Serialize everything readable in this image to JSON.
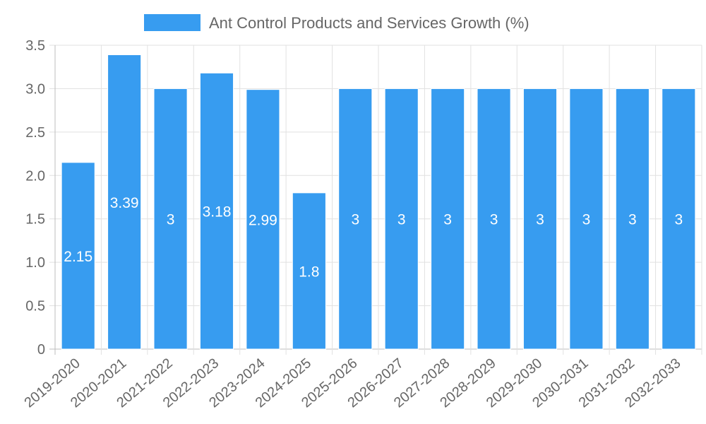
{
  "chart_data": {
    "type": "bar",
    "categories": [
      "2019-2020",
      "2020-2021",
      "2021-2022",
      "2022-2023",
      "2023-2024",
      "2024-2025",
      "2025-2026",
      "2026-2027",
      "2027-2028",
      "2028-2029",
      "2029-2030",
      "2030-2031",
      "2031-2032",
      "2032-2033"
    ],
    "series": [
      {
        "name": "Ant Control Products and Services Growth (%)",
        "values": [
          2.15,
          3.39,
          3,
          3.18,
          2.99,
          1.8,
          3,
          3,
          3,
          3,
          3,
          3,
          3,
          3
        ],
        "color": "#379CF0"
      }
    ],
    "data_labels": [
      "2.15",
      "3.39",
      "3",
      "3.18",
      "2.99",
      "1.8",
      "3",
      "3",
      "3",
      "3",
      "3",
      "3",
      "3",
      "3"
    ],
    "y_ticks": [
      {
        "value": 0,
        "label": "0"
      },
      {
        "value": 0.5,
        "label": "0.5"
      },
      {
        "value": 1,
        "label": "1.0"
      },
      {
        "value": 1.5,
        "label": "1.5"
      },
      {
        "value": 2,
        "label": "2.0"
      },
      {
        "value": 2.5,
        "label": "2.5"
      },
      {
        "value": 3,
        "label": "3.0"
      },
      {
        "value": 3.5,
        "label": "3.5"
      }
    ],
    "ylim": [
      0,
      3.5
    ],
    "grid": true,
    "legend_position": "top-center",
    "colors": {
      "grid": "#e1e1e1",
      "axis": "#bdbdbd",
      "text": "#666666",
      "label": "#ffffff"
    }
  }
}
